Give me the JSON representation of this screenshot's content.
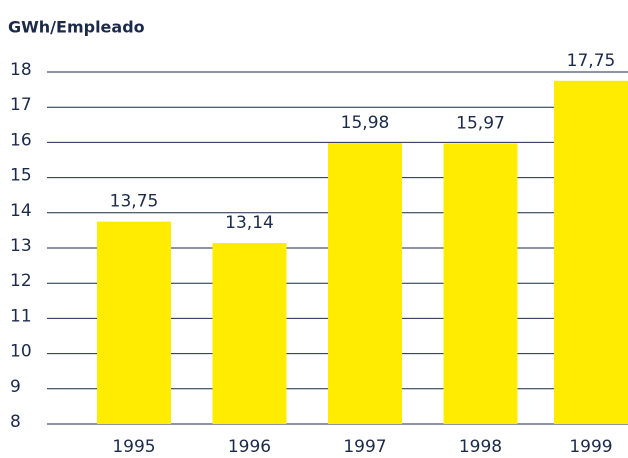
{
  "chart_data": {
    "type": "bar",
    "title": "GWh/Empleado",
    "categories": [
      "1995",
      "1996",
      "1997",
      "1998",
      "1999"
    ],
    "values": [
      13.75,
      13.14,
      15.98,
      15.97,
      17.75
    ],
    "value_labels": [
      "13,75",
      "13,14",
      "15,98",
      "15,97",
      "17,75"
    ],
    "color": "#ffec00",
    "ylim": [
      8,
      18
    ],
    "yticks": [
      8,
      9,
      10,
      11,
      12,
      13,
      14,
      15,
      16,
      17,
      18
    ],
    "grid": true
  }
}
